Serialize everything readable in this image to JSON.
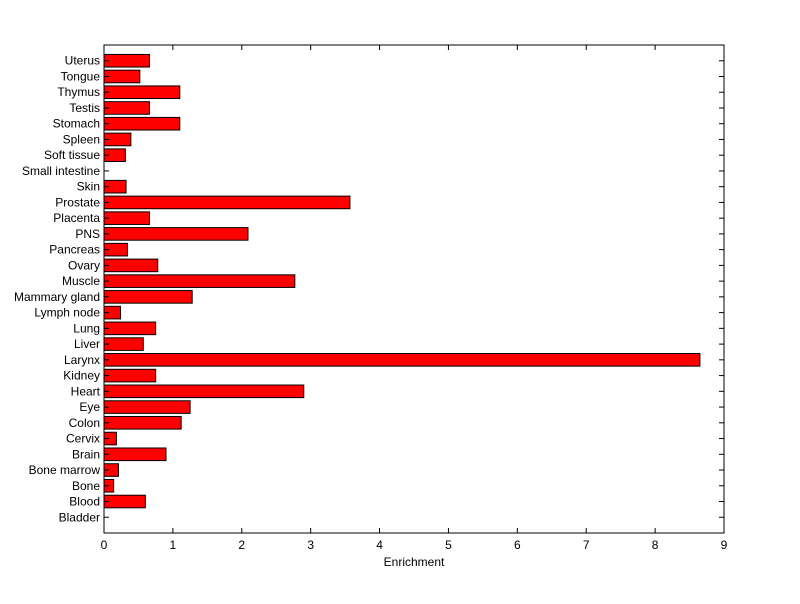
{
  "chart_data": {
    "type": "bar",
    "orientation": "horizontal",
    "categories": [
      "Bladder",
      "Blood",
      "Bone",
      "Bone marrow",
      "Brain",
      "Cervix",
      "Colon",
      "Eye",
      "Heart",
      "Kidney",
      "Larynx",
      "Liver",
      "Lung",
      "Lymph node",
      "Mammary gland",
      "Muscle",
      "Ovary",
      "Pancreas",
      "PNS",
      "Placenta",
      "Prostate",
      "Skin",
      "Small intestine",
      "Soft tissue",
      "Spleen",
      "Stomach",
      "Testis",
      "Thymus",
      "Tongue",
      "Uterus"
    ],
    "values": [
      0,
      0.6,
      0.14,
      0.21,
      0.9,
      0.18,
      1.12,
      1.25,
      2.9,
      0.75,
      8.65,
      0.57,
      0.75,
      0.24,
      1.28,
      2.77,
      0.78,
      0.34,
      2.09,
      0.66,
      3.57,
      0.32,
      0,
      0.31,
      0.39,
      1.1,
      0.66,
      1.1,
      0.52,
      0.66
    ],
    "xlabel": "Enrichment",
    "ylabel": "",
    "title": "",
    "xlim": [
      0,
      9
    ],
    "xticks": [
      "0",
      "1",
      "2",
      "3",
      "4",
      "5",
      "6",
      "7",
      "8",
      "9"
    ],
    "grid": false,
    "bar_color": "#ff0000",
    "edge_color": "#000000"
  }
}
